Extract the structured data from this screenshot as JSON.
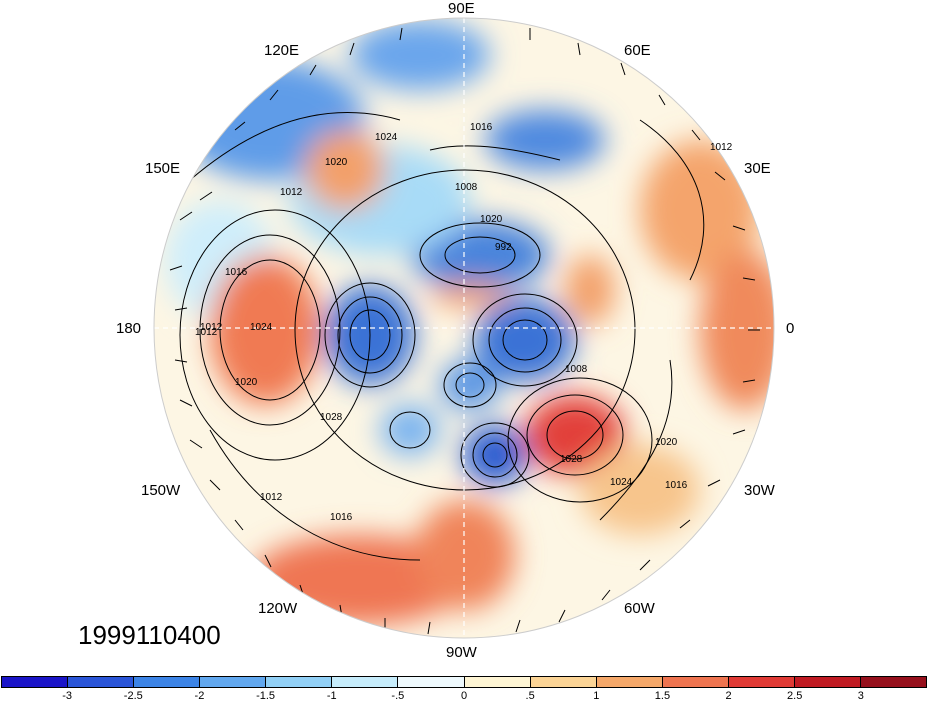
{
  "date_label": "1999110400",
  "longitude_labels": [
    {
      "id": "lon-90e",
      "text": "90E"
    },
    {
      "id": "lon-120e",
      "text": "120E"
    },
    {
      "id": "lon-60e",
      "text": "60E"
    },
    {
      "id": "lon-150e",
      "text": "150E"
    },
    {
      "id": "lon-30e",
      "text": "30E"
    },
    {
      "id": "lon-180",
      "text": "180"
    },
    {
      "id": "lon-0",
      "text": "0"
    },
    {
      "id": "lon-150w",
      "text": "150W"
    },
    {
      "id": "lon-30w",
      "text": "30W"
    },
    {
      "id": "lon-120w",
      "text": "120W"
    },
    {
      "id": "lon-60w",
      "text": "60W"
    },
    {
      "id": "lon-90w",
      "text": "90W"
    }
  ],
  "contour_labels": [
    "1016",
    "1024",
    "1008",
    "1012",
    "1020",
    "1020",
    "992",
    "1016",
    "1012",
    "1024",
    "1020",
    "1028",
    "1008",
    "1028",
    "1024",
    "1020",
    "1016",
    "1012",
    "1016",
    "1012",
    "1012"
  ],
  "colorbar": {
    "colors": [
      "#1a14c8",
      "#2a55d8",
      "#3c84e6",
      "#62a8ef",
      "#92d0f6",
      "#c6ecfb",
      "#eef9fd",
      "#fef5d4",
      "#fbd496",
      "#f5a86a",
      "#ee7450",
      "#e03a35",
      "#c01a22",
      "#96101c"
    ],
    "tick_labels": [
      "-3",
      "-2.5",
      "-2",
      "-1.5",
      "-1",
      "-.5",
      "0",
      ".5",
      "1",
      "1.5",
      "2",
      "2.5",
      "3"
    ]
  }
}
